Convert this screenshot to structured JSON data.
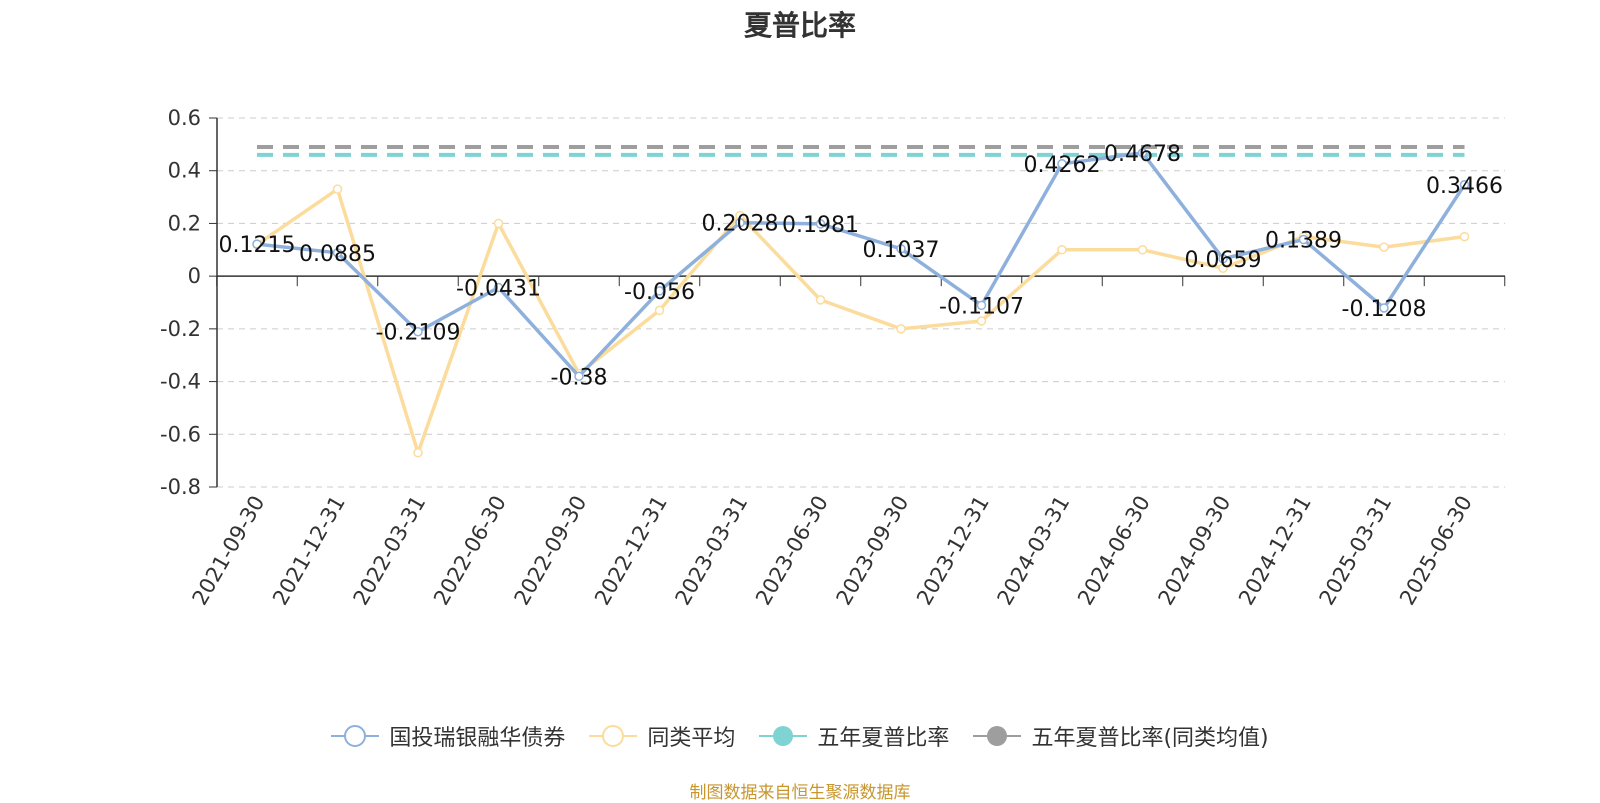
{
  "title": "夏普比率",
  "source_note": "制图数据来自恒生聚源数据库",
  "colors": {
    "fund": "#8eb0dc",
    "peer": "#fbdc9c",
    "five_year": "#7fd3d3",
    "five_year_peer": "#9e9e9e",
    "axis": "#333333",
    "grid": "#cccccc"
  },
  "legend": [
    {
      "name": "国投瑞银融华债券",
      "color": "#8eb0dc",
      "style": "hollow-circle-line"
    },
    {
      "name": "同类平均",
      "color": "#fbdc9c",
      "style": "hollow-circle-line"
    },
    {
      "name": "五年夏普比率",
      "color": "#7fd3d3",
      "style": "filled-circle-line"
    },
    {
      "name": "五年夏普比率(同类均值)",
      "color": "#9e9e9e",
      "style": "filled-circle-line"
    }
  ],
  "chart_data": {
    "type": "line",
    "title": "夏普比率",
    "categories": [
      "2021-09-30",
      "2021-12-31",
      "2022-03-31",
      "2022-06-30",
      "2022-09-30",
      "2022-12-31",
      "2023-03-31",
      "2023-06-30",
      "2023-09-30",
      "2023-12-31",
      "2024-03-31",
      "2024-06-30",
      "2024-09-30",
      "2024-12-31",
      "2025-03-31",
      "2025-06-30"
    ],
    "ylim": [
      -0.8,
      0.6
    ],
    "yticks": [
      0.6,
      0.4,
      0.2,
      0,
      -0.2,
      -0.4,
      -0.6,
      -0.8
    ],
    "ytick_labels": [
      "0.6",
      "0.4",
      "0.2",
      "0",
      "-0.2",
      "-0.4",
      "-0.6",
      "-0.8"
    ],
    "grid": true,
    "legend_position": "bottom",
    "series": [
      {
        "name": "国投瑞银融华债券",
        "values": [
          0.1215,
          0.0885,
          -0.2109,
          -0.0431,
          -0.38,
          -0.056,
          0.2028,
          0.1981,
          0.1037,
          -0.1107,
          0.4262,
          0.4678,
          0.0659,
          0.1389,
          -0.1208,
          0.3466
        ],
        "labels": [
          "0.1215",
          "0.0885",
          "-0.2109",
          "-0.0431",
          "-0.38",
          "-0.056",
          "0.2028",
          "0.1981",
          "0.1037",
          "-0.1107",
          "0.4262",
          "0.4678",
          "0.0659",
          "0.1389",
          "-0.1208",
          "0.3466"
        ]
      },
      {
        "name": "同类平均",
        "values": [
          0.12,
          0.33,
          -0.67,
          0.2,
          -0.37,
          -0.13,
          0.23,
          -0.09,
          -0.2,
          -0.17,
          0.1,
          0.1,
          0.03,
          0.15,
          0.11,
          0.15
        ]
      }
    ],
    "reference_lines": [
      {
        "name": "五年夏普比率",
        "value": 0.46
      },
      {
        "name": "五年夏普比率(同类均值)",
        "value": 0.49
      }
    ]
  }
}
